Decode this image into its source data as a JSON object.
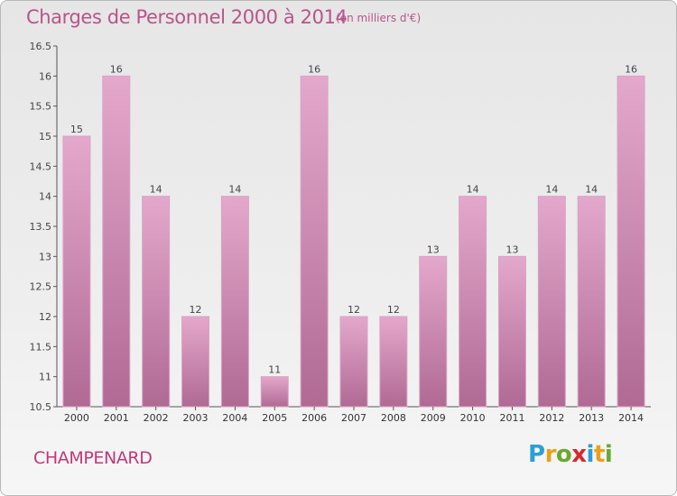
{
  "title": "Charges de Personnel 2000 à 2014",
  "subtitle": "(en milliers d'€)",
  "location": "CHAMPENARD",
  "logo": {
    "text": "Proxiti",
    "letters": [
      {
        "ch": "P",
        "color": "#2a9fd8"
      },
      {
        "ch": "r",
        "color": "#e8a21a"
      },
      {
        "ch": "o",
        "color": "#6aa832"
      },
      {
        "ch": "x",
        "color": "#d6282e"
      },
      {
        "ch": "i",
        "color": "#2a9fd8"
      },
      {
        "ch": "t",
        "color": "#e8a21a"
      },
      {
        "ch": "i",
        "color": "#6aa832"
      }
    ]
  },
  "colors": {
    "title": "#b85488",
    "bar_top": "#e4a8cc",
    "bar_bottom": "#b06a94",
    "axis": "#555555",
    "grid": "#cfcfcf"
  },
  "chart_data": {
    "type": "bar",
    "categories": [
      "2000",
      "2001",
      "2002",
      "2003",
      "2004",
      "2005",
      "2006",
      "2007",
      "2008",
      "2009",
      "2010",
      "2011",
      "2012",
      "2013",
      "2014"
    ],
    "values": [
      15,
      16,
      14,
      12,
      14,
      11,
      16,
      12,
      12,
      13,
      14,
      13,
      14,
      14,
      16
    ],
    "data_labels": [
      "15",
      "16",
      "14",
      "12",
      "14",
      "11",
      "16",
      "12",
      "12",
      "13",
      "14",
      "13",
      "14",
      "14",
      "16"
    ],
    "ylim": [
      10.5,
      16.5
    ],
    "yticks": [
      10.5,
      11,
      11.5,
      12,
      12.5,
      13,
      13.5,
      14,
      14.5,
      15,
      15.5,
      16,
      16.5
    ],
    "ytick_labels": [
      "10.5",
      "11",
      "11.5",
      "12",
      "12.5",
      "13",
      "13.5",
      "14",
      "14.5",
      "15",
      "15.5",
      "16",
      "16.5"
    ],
    "grid": false,
    "xlabel": "",
    "ylabel": ""
  }
}
